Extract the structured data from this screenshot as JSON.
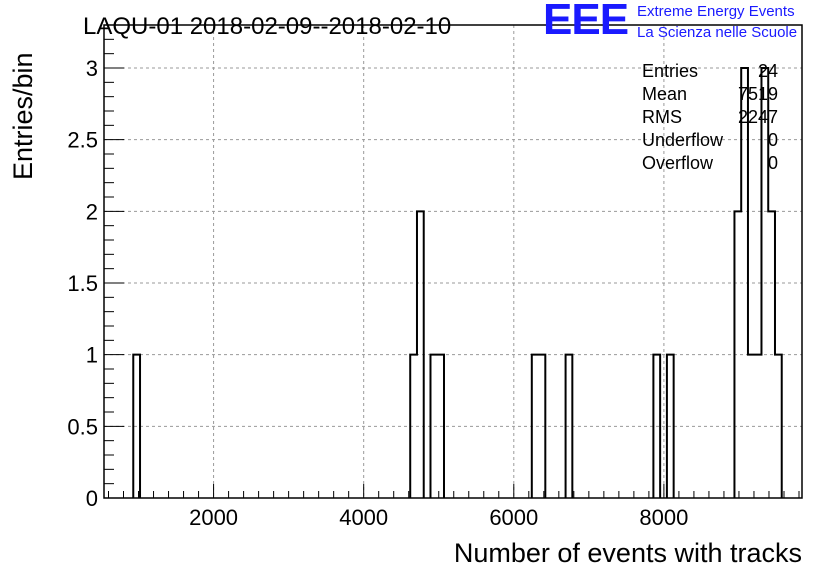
{
  "chart_data": {
    "type": "histogram",
    "title": "LAQU-01 2018-02-09--2018-02-10",
    "xlabel": "Number of events with tracks",
    "ylabel": "Entries/bin",
    "xlim": [
      540,
      9840
    ],
    "ylim": [
      0,
      3.3
    ],
    "bin_width": 90,
    "x_ticks": [
      2000,
      4000,
      6000,
      8000
    ],
    "y_ticks": [
      0,
      0.5,
      1,
      1.5,
      2,
      2.5,
      3
    ],
    "y_tick_labels": [
      "0",
      "0.5",
      "1",
      "1.5",
      "2",
      "2.5",
      "3"
    ],
    "grid": true,
    "bins": [
      {
        "x0": 930,
        "x1": 1020,
        "count": 1
      },
      {
        "x0": 4620,
        "x1": 4710,
        "count": 1
      },
      {
        "x0": 4710,
        "x1": 4800,
        "count": 2
      },
      {
        "x0": 4890,
        "x1": 4980,
        "count": 1
      },
      {
        "x0": 4980,
        "x1": 5070,
        "count": 1
      },
      {
        "x0": 6240,
        "x1": 6330,
        "count": 1
      },
      {
        "x0": 6330,
        "x1": 6420,
        "count": 1
      },
      {
        "x0": 6690,
        "x1": 6780,
        "count": 1
      },
      {
        "x0": 7860,
        "x1": 7950,
        "count": 1
      },
      {
        "x0": 8040,
        "x1": 8130,
        "count": 1
      },
      {
        "x0": 8940,
        "x1": 9030,
        "count": 2
      },
      {
        "x0": 9030,
        "x1": 9120,
        "count": 3
      },
      {
        "x0": 9120,
        "x1": 9210,
        "count": 1
      },
      {
        "x0": 9210,
        "x1": 9300,
        "count": 1
      },
      {
        "x0": 9300,
        "x1": 9390,
        "count": 3
      },
      {
        "x0": 9390,
        "x1": 9480,
        "count": 2
      },
      {
        "x0": 9480,
        "x1": 9570,
        "count": 1
      }
    ],
    "stats": [
      {
        "label": "Entries",
        "value": "24"
      },
      {
        "label": "Mean",
        "value": "7519"
      },
      {
        "label": "RMS",
        "value": "2247"
      },
      {
        "label": "Underflow",
        "value": "0"
      },
      {
        "label": "Overflow",
        "value": "0"
      }
    ]
  },
  "logo": {
    "letters": "EEE",
    "line1": "Extreme Energy Events",
    "line2": "La Scienza nelle Scuole",
    "color": "#1a1aff"
  }
}
